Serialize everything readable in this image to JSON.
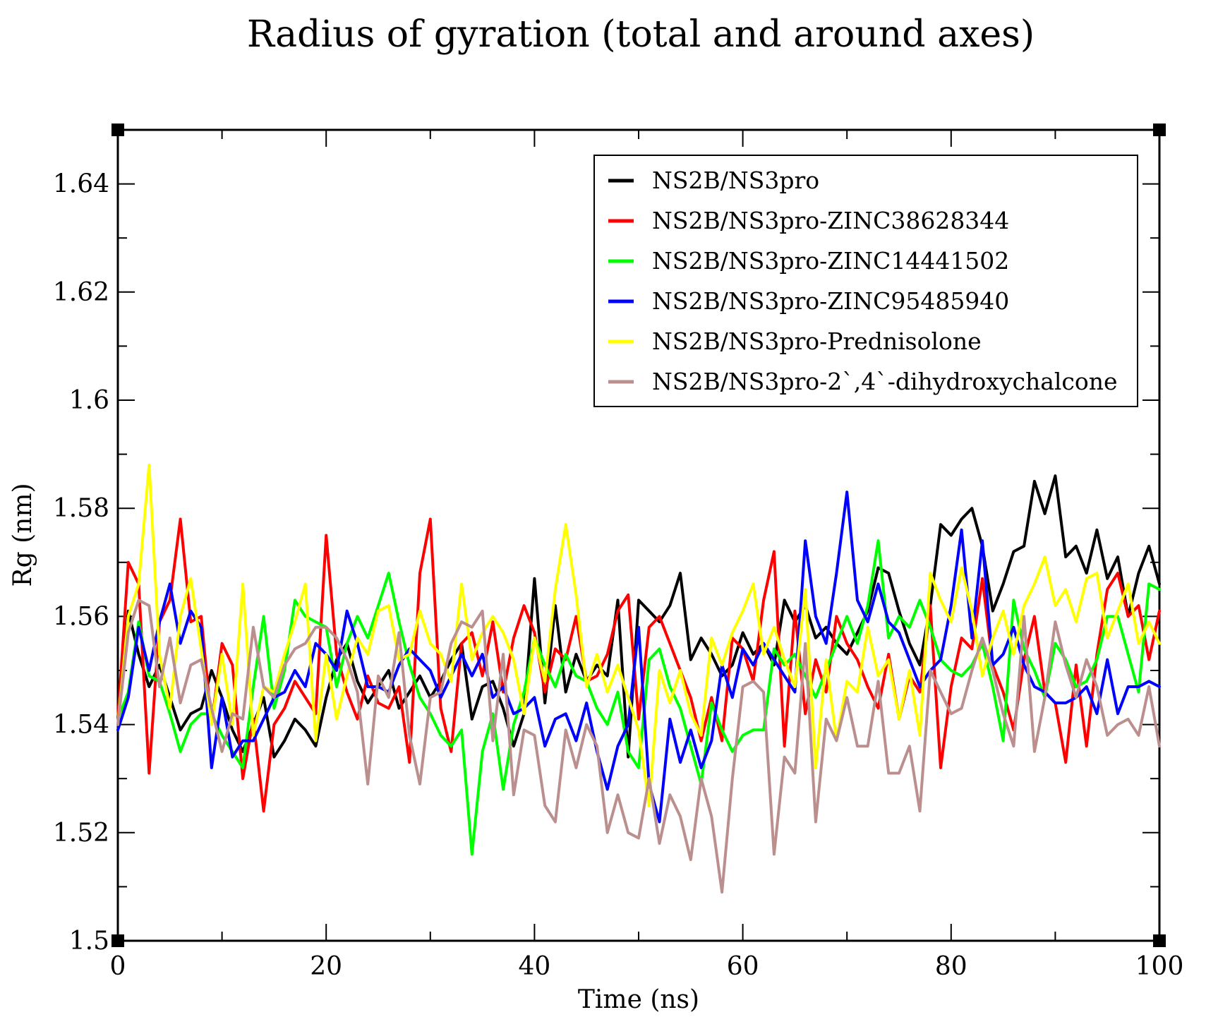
{
  "chart_data": {
    "type": "line",
    "title": "Radius of gyration (total and around axes)",
    "xlabel": "Time (ns)",
    "ylabel": "Rg (nm)",
    "xlim": [
      0,
      100
    ],
    "ylim": [
      1.5,
      1.65
    ],
    "xticks": [
      0,
      20,
      40,
      60,
      80,
      100
    ],
    "yticks": [
      1.5,
      1.52,
      1.54,
      1.56,
      1.58,
      1.6,
      1.62,
      1.64
    ],
    "ytick_labels": [
      "1.5",
      "1.52",
      "1.54",
      "1.56",
      "1.58",
      "1.6",
      "1.62",
      "1.64"
    ],
    "xtick_labels": [
      "0",
      "20",
      "40",
      "60",
      "80",
      "100"
    ],
    "grid": false,
    "legend_position": "top-right",
    "x": [
      0,
      1,
      2,
      3,
      4,
      5,
      6,
      7,
      8,
      9,
      10,
      11,
      12,
      13,
      14,
      15,
      16,
      17,
      18,
      19,
      20,
      21,
      22,
      23,
      24,
      25,
      26,
      27,
      28,
      29,
      30,
      31,
      32,
      33,
      34,
      35,
      36,
      37,
      38,
      39,
      40,
      41,
      42,
      43,
      44,
      45,
      46,
      47,
      48,
      49,
      50,
      51,
      52,
      53,
      54,
      55,
      56,
      57,
      58,
      59,
      60,
      61,
      62,
      63,
      64,
      65,
      66,
      67,
      68,
      69,
      70,
      71,
      72,
      73,
      74,
      75,
      76,
      77,
      78,
      79,
      80,
      81,
      82,
      83,
      84,
      85,
      86,
      87,
      88,
      89,
      90,
      91,
      92,
      93,
      94,
      95,
      96,
      97,
      98,
      99,
      100
    ],
    "series": [
      {
        "name": "NS2B/NS3pro",
        "color": "#000000",
        "values": [
          1.541,
          1.561,
          1.553,
          1.547,
          1.551,
          1.545,
          1.539,
          1.542,
          1.543,
          1.55,
          1.545,
          1.539,
          1.535,
          1.54,
          1.545,
          1.534,
          1.537,
          1.541,
          1.539,
          1.536,
          1.545,
          1.552,
          1.555,
          1.548,
          1.544,
          1.547,
          1.55,
          1.543,
          1.546,
          1.549,
          1.545,
          1.548,
          1.552,
          1.555,
          1.541,
          1.547,
          1.548,
          1.543,
          1.536,
          1.542,
          1.567,
          1.544,
          1.562,
          1.546,
          1.553,
          1.548,
          1.551,
          1.549,
          1.563,
          1.534,
          1.563,
          1.561,
          1.559,
          1.562,
          1.568,
          1.552,
          1.556,
          1.553,
          1.549,
          1.551,
          1.557,
          1.553,
          1.555,
          1.551,
          1.563,
          1.559,
          1.562,
          1.556,
          1.558,
          1.555,
          1.553,
          1.557,
          1.561,
          1.569,
          1.568,
          1.561,
          1.555,
          1.551,
          1.562,
          1.577,
          1.575,
          1.578,
          1.58,
          1.573,
          1.561,
          1.566,
          1.572,
          1.573,
          1.585,
          1.579,
          1.586,
          1.571,
          1.573,
          1.568,
          1.576,
          1.567,
          1.571,
          1.56,
          1.568,
          1.573,
          1.566
        ]
      },
      {
        "name": "NS2B/NS3pro-ZINC38628344",
        "color": "#ff0000",
        "values": [
          1.541,
          1.57,
          1.566,
          1.531,
          1.559,
          1.563,
          1.578,
          1.559,
          1.56,
          1.54,
          1.555,
          1.551,
          1.53,
          1.541,
          1.524,
          1.54,
          1.543,
          1.548,
          1.545,
          1.542,
          1.575,
          1.553,
          1.546,
          1.541,
          1.549,
          1.544,
          1.543,
          1.547,
          1.533,
          1.568,
          1.578,
          1.543,
          1.535,
          1.555,
          1.557,
          1.549,
          1.559,
          1.546,
          1.556,
          1.562,
          1.557,
          1.546,
          1.554,
          1.552,
          1.56,
          1.548,
          1.549,
          1.553,
          1.561,
          1.564,
          1.541,
          1.558,
          1.56,
          1.555,
          1.55,
          1.545,
          1.537,
          1.545,
          1.537,
          1.556,
          1.554,
          1.548,
          1.563,
          1.572,
          1.536,
          1.561,
          1.542,
          1.552,
          1.546,
          1.56,
          1.555,
          1.552,
          1.547,
          1.543,
          1.553,
          1.541,
          1.549,
          1.546,
          1.562,
          1.532,
          1.547,
          1.556,
          1.554,
          1.567,
          1.551,
          1.546,
          1.539,
          1.552,
          1.56,
          1.546,
          1.544,
          1.533,
          1.551,
          1.536,
          1.553,
          1.565,
          1.568,
          1.56,
          1.562,
          1.552,
          1.561
        ]
      },
      {
        "name": "NS2B/NS3pro-ZINC14441502",
        "color": "#00ff00",
        "values": [
          1.541,
          1.546,
          1.559,
          1.549,
          1.548,
          1.542,
          1.535,
          1.54,
          1.542,
          1.542,
          1.538,
          1.535,
          1.532,
          1.547,
          1.56,
          1.543,
          1.55,
          1.563,
          1.56,
          1.559,
          1.558,
          1.547,
          1.555,
          1.56,
          1.556,
          1.562,
          1.568,
          1.559,
          1.551,
          1.545,
          1.542,
          1.538,
          1.536,
          1.539,
          1.516,
          1.535,
          1.542,
          1.528,
          1.54,
          1.546,
          1.556,
          1.551,
          1.547,
          1.553,
          1.549,
          1.548,
          1.543,
          1.54,
          1.546,
          1.535,
          1.532,
          1.552,
          1.554,
          1.547,
          1.543,
          1.536,
          1.529,
          1.544,
          1.539,
          1.535,
          1.538,
          1.539,
          1.539,
          1.554,
          1.551,
          1.553,
          1.549,
          1.545,
          1.55,
          1.555,
          1.56,
          1.555,
          1.562,
          1.574,
          1.556,
          1.56,
          1.558,
          1.563,
          1.558,
          1.552,
          1.55,
          1.549,
          1.551,
          1.555,
          1.547,
          1.537,
          1.563,
          1.554,
          1.55,
          1.545,
          1.555,
          1.552,
          1.547,
          1.548,
          1.552,
          1.56,
          1.56,
          1.553,
          1.546,
          1.566,
          1.565
        ]
      },
      {
        "name": "NS2B/NS3pro-ZINC95485940",
        "color": "#0000ff",
        "values": [
          1.539,
          1.545,
          1.558,
          1.55,
          1.559,
          1.566,
          1.555,
          1.561,
          1.558,
          1.532,
          1.545,
          1.534,
          1.537,
          1.537,
          1.541,
          1.545,
          1.546,
          1.55,
          1.547,
          1.555,
          1.553,
          1.55,
          1.561,
          1.555,
          1.547,
          1.547,
          1.546,
          1.551,
          1.554,
          1.552,
          1.55,
          1.545,
          1.549,
          1.553,
          1.549,
          1.553,
          1.545,
          1.547,
          1.542,
          1.543,
          1.545,
          1.536,
          1.541,
          1.542,
          1.537,
          1.544,
          1.535,
          1.528,
          1.536,
          1.54,
          1.558,
          1.529,
          1.522,
          1.541,
          1.533,
          1.539,
          1.532,
          1.537,
          1.551,
          1.545,
          1.554,
          1.551,
          1.555,
          1.552,
          1.549,
          1.546,
          1.574,
          1.56,
          1.555,
          1.568,
          1.583,
          1.563,
          1.559,
          1.566,
          1.559,
          1.557,
          1.552,
          1.547,
          1.55,
          1.552,
          1.562,
          1.576,
          1.556,
          1.574,
          1.551,
          1.553,
          1.558,
          1.551,
          1.547,
          1.546,
          1.544,
          1.544,
          1.545,
          1.547,
          1.542,
          1.552,
          1.542,
          1.547,
          1.547,
          1.548,
          1.547
        ]
      },
      {
        "name": "NS2B/NS3pro-Prednisolone",
        "color": "#ffff00",
        "values": [
          1.54,
          1.56,
          1.566,
          1.588,
          1.553,
          1.543,
          1.56,
          1.567,
          1.554,
          1.54,
          1.553,
          1.54,
          1.566,
          1.538,
          1.547,
          1.546,
          1.553,
          1.559,
          1.566,
          1.537,
          1.553,
          1.541,
          1.549,
          1.556,
          1.553,
          1.561,
          1.562,
          1.552,
          1.553,
          1.561,
          1.555,
          1.553,
          1.548,
          1.566,
          1.552,
          1.557,
          1.56,
          1.557,
          1.552,
          1.542,
          1.556,
          1.548,
          1.565,
          1.577,
          1.564,
          1.547,
          1.553,
          1.546,
          1.551,
          1.545,
          1.539,
          1.525,
          1.55,
          1.544,
          1.55,
          1.542,
          1.538,
          1.556,
          1.551,
          1.557,
          1.561,
          1.566,
          1.553,
          1.558,
          1.552,
          1.547,
          1.565,
          1.532,
          1.552,
          1.537,
          1.548,
          1.546,
          1.558,
          1.549,
          1.552,
          1.541,
          1.55,
          1.538,
          1.568,
          1.563,
          1.559,
          1.569,
          1.561,
          1.549,
          1.556,
          1.561,
          1.553,
          1.562,
          1.566,
          1.571,
          1.562,
          1.565,
          1.559,
          1.567,
          1.568,
          1.556,
          1.561,
          1.566,
          1.555,
          1.559,
          1.555
        ]
      },
      {
        "name": "NS2B/NS3pro-2`,4`-dihydroxychalcone",
        "color": "#bc8f8f",
        "values": [
          1.54,
          1.557,
          1.563,
          1.562,
          1.547,
          1.556,
          1.544,
          1.551,
          1.552,
          1.543,
          1.535,
          1.542,
          1.541,
          1.558,
          1.547,
          1.545,
          1.551,
          1.554,
          1.555,
          1.558,
          1.558,
          1.556,
          1.552,
          1.546,
          1.529,
          1.549,
          1.545,
          1.557,
          1.538,
          1.529,
          1.545,
          1.546,
          1.555,
          1.559,
          1.558,
          1.561,
          1.537,
          1.553,
          1.527,
          1.539,
          1.538,
          1.525,
          1.522,
          1.539,
          1.532,
          1.54,
          1.536,
          1.52,
          1.527,
          1.52,
          1.519,
          1.53,
          1.518,
          1.527,
          1.523,
          1.515,
          1.53,
          1.523,
          1.509,
          1.53,
          1.547,
          1.548,
          1.546,
          1.516,
          1.534,
          1.531,
          1.555,
          1.522,
          1.541,
          1.537,
          1.545,
          1.536,
          1.536,
          1.548,
          1.531,
          1.531,
          1.536,
          1.524,
          1.55,
          1.546,
          1.542,
          1.543,
          1.55,
          1.556,
          1.55,
          1.542,
          1.536,
          1.56,
          1.535,
          1.545,
          1.559,
          1.551,
          1.545,
          1.552,
          1.547,
          1.538,
          1.54,
          1.541,
          1.538,
          1.547,
          1.536
        ]
      }
    ]
  }
}
